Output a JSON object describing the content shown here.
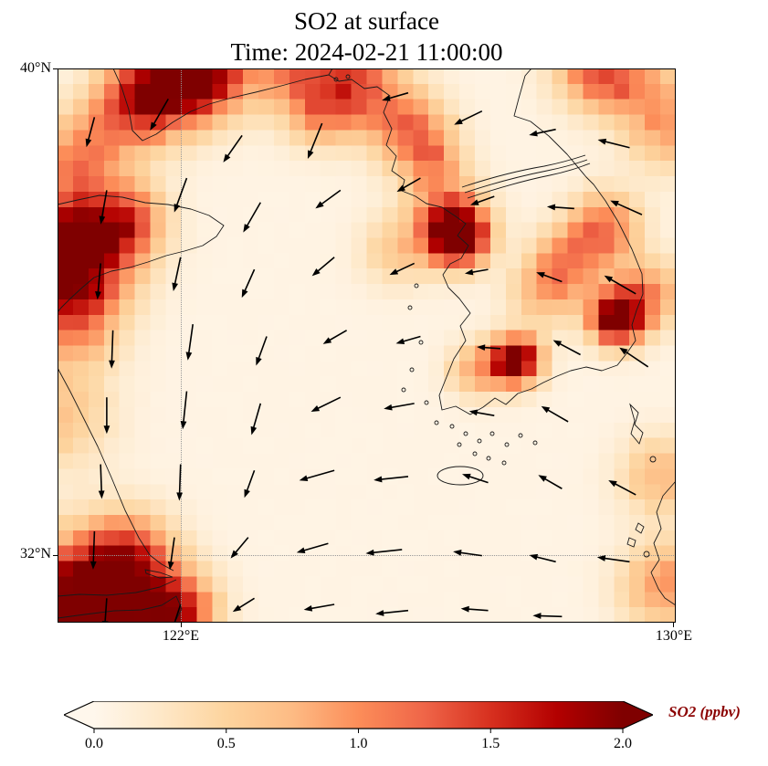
{
  "header": {
    "title": "SO2 at surface",
    "subtitle": "Time: 2024-02-21 11:00:00"
  },
  "axes": {
    "lat_top": "40°N",
    "lat_mid": "32°N",
    "lon_left": "122°E",
    "lon_right": "130°E"
  },
  "colorbar": {
    "label": "SO2 (ppbv)",
    "label_color": "#8b0000",
    "ticks": [
      "0.0",
      "0.5",
      "1.0",
      "1.5",
      "2.0"
    ],
    "extend": "both"
  },
  "chart_data": {
    "type": "heatmap",
    "title": "SO2 at surface",
    "time": "2024-02-21 11:00:00",
    "variable": "SO2",
    "units": "ppbv",
    "lon_range": [
      120.0,
      130.05
    ],
    "lat_range": [
      30.9,
      40.0
    ],
    "value_range": [
      0,
      2.0
    ],
    "colormap": "OrRd",
    "colormap_stops": [
      "#fff7ec",
      "#fee8c8",
      "#fdd49e",
      "#fdbb84",
      "#fc8d59",
      "#ef6548",
      "#d7301f",
      "#b30000",
      "#7f0000"
    ],
    "background_value": 0.06,
    "grid": {
      "nx": 40,
      "ny": 36
    },
    "gridlines": {
      "lon": 122.0,
      "lat": 32.0
    },
    "hotspots": [
      {
        "lon": 122.2,
        "lat": 40.0,
        "peak": 2.6,
        "sigma": 0.55
      },
      {
        "lon": 121.3,
        "lat": 39.4,
        "peak": 1.4,
        "sigma": 0.5
      },
      {
        "lon": 120.4,
        "lat": 38.6,
        "peak": 0.9,
        "sigma": 0.5
      },
      {
        "lon": 120.2,
        "lat": 37.0,
        "peak": 2.6,
        "sigma": 0.65
      },
      {
        "lon": 121.2,
        "lat": 37.5,
        "peak": 1.0,
        "sigma": 0.4
      },
      {
        "lon": 120.3,
        "lat": 35.8,
        "peak": 0.8,
        "sigma": 0.5
      },
      {
        "lon": 120.5,
        "lat": 31.2,
        "peak": 2.6,
        "sigma": 0.7
      },
      {
        "lon": 121.9,
        "lat": 31.1,
        "peak": 1.6,
        "sigma": 0.45
      },
      {
        "lon": 121.2,
        "lat": 32.0,
        "peak": 1.0,
        "sigma": 0.5
      },
      {
        "lon": 124.9,
        "lat": 39.8,
        "peak": 1.1,
        "sigma": 0.5
      },
      {
        "lon": 125.7,
        "lat": 39.0,
        "peak": 1.0,
        "sigma": 0.45
      },
      {
        "lon": 126.1,
        "lat": 38.5,
        "peak": 0.7,
        "sigma": 0.35
      },
      {
        "lon": 123.8,
        "lat": 40.0,
        "peak": 0.9,
        "sigma": 0.5
      },
      {
        "lon": 124.3,
        "lat": 39.3,
        "peak": 0.8,
        "sigma": 0.4
      },
      {
        "lon": 126.5,
        "lat": 37.25,
        "peak": 2.4,
        "sigma": 0.33
      },
      {
        "lon": 126.3,
        "lat": 37.6,
        "peak": 0.9,
        "sigma": 0.45
      },
      {
        "lon": 125.5,
        "lat": 37.0,
        "peak": 0.5,
        "sigma": 0.4
      },
      {
        "lon": 128.9,
        "lat": 37.4,
        "peak": 1.1,
        "sigma": 0.4
      },
      {
        "lon": 128.3,
        "lat": 36.8,
        "peak": 0.9,
        "sigma": 0.4
      },
      {
        "lon": 127.9,
        "lat": 36.3,
        "peak": 0.6,
        "sigma": 0.4
      },
      {
        "lon": 129.1,
        "lat": 35.9,
        "peak": 2.3,
        "sigma": 0.3
      },
      {
        "lon": 129.6,
        "lat": 36.3,
        "peak": 0.9,
        "sigma": 0.4
      },
      {
        "lon": 127.45,
        "lat": 35.2,
        "peak": 2.3,
        "sigma": 0.28
      },
      {
        "lon": 126.8,
        "lat": 35.05,
        "peak": 0.8,
        "sigma": 0.3
      },
      {
        "lon": 129.8,
        "lat": 33.3,
        "peak": 0.7,
        "sigma": 0.45
      },
      {
        "lon": 129.9,
        "lat": 31.5,
        "peak": 0.9,
        "sigma": 0.5
      },
      {
        "lon": 120.0,
        "lat": 34.3,
        "peak": 0.6,
        "sigma": 0.6
      },
      {
        "lon": 129.6,
        "lat": 39.6,
        "peak": 0.6,
        "sigma": 0.5
      },
      {
        "lon": 128.6,
        "lat": 40.0,
        "peak": 0.7,
        "sigma": 0.45
      },
      {
        "lon": 129.0,
        "lat": 39.9,
        "peak": 0.7,
        "sigma": 0.4
      },
      {
        "lon": 129.9,
        "lat": 38.9,
        "peak": 0.6,
        "sigma": 0.45
      }
    ],
    "wind": {
      "style": "quiver",
      "arrows": [
        [
          120.6,
          39.2,
          255,
          34
        ],
        [
          121.8,
          39.5,
          240,
          40
        ],
        [
          123.0,
          38.9,
          235,
          36
        ],
        [
          124.3,
          39.1,
          248,
          42
        ],
        [
          125.7,
          39.6,
          196,
          30
        ],
        [
          126.9,
          39.3,
          206,
          34
        ],
        [
          128.1,
          39.0,
          192,
          30
        ],
        [
          129.3,
          38.7,
          166,
          36
        ],
        [
          120.8,
          38.0,
          260,
          38
        ],
        [
          122.1,
          38.2,
          250,
          40
        ],
        [
          123.3,
          37.8,
          240,
          38
        ],
        [
          124.6,
          38.0,
          216,
          34
        ],
        [
          125.9,
          38.2,
          210,
          30
        ],
        [
          127.1,
          37.9,
          200,
          28
        ],
        [
          128.4,
          37.7,
          176,
          30
        ],
        [
          129.5,
          37.6,
          156,
          38
        ],
        [
          120.7,
          36.8,
          265,
          40
        ],
        [
          122.0,
          36.9,
          258,
          38
        ],
        [
          123.2,
          36.7,
          246,
          34
        ],
        [
          124.5,
          36.9,
          220,
          32
        ],
        [
          125.8,
          36.8,
          205,
          30
        ],
        [
          127.0,
          36.7,
          190,
          26
        ],
        [
          128.2,
          36.5,
          160,
          30
        ],
        [
          129.4,
          36.3,
          150,
          40
        ],
        [
          120.9,
          35.7,
          268,
          42
        ],
        [
          122.2,
          35.8,
          262,
          40
        ],
        [
          123.4,
          35.6,
          250,
          34
        ],
        [
          124.7,
          35.7,
          210,
          30
        ],
        [
          125.9,
          35.6,
          196,
          28
        ],
        [
          127.2,
          35.4,
          176,
          26
        ],
        [
          128.5,
          35.3,
          152,
          34
        ],
        [
          129.6,
          35.1,
          146,
          38
        ],
        [
          120.8,
          34.6,
          270,
          40
        ],
        [
          122.1,
          34.7,
          264,
          42
        ],
        [
          123.3,
          34.5,
          254,
          36
        ],
        [
          124.6,
          34.6,
          206,
          36
        ],
        [
          125.8,
          34.5,
          190,
          34
        ],
        [
          127.1,
          34.3,
          170,
          28
        ],
        [
          128.3,
          34.2,
          150,
          34
        ],
        [
          120.7,
          33.5,
          272,
          38
        ],
        [
          122.0,
          33.5,
          268,
          40
        ],
        [
          123.2,
          33.4,
          250,
          32
        ],
        [
          124.5,
          33.4,
          196,
          40
        ],
        [
          125.7,
          33.3,
          186,
          38
        ],
        [
          127.0,
          33.2,
          162,
          30
        ],
        [
          128.2,
          33.1,
          150,
          30
        ],
        [
          129.4,
          33.0,
          152,
          34
        ],
        [
          120.6,
          32.4,
          268,
          42
        ],
        [
          121.9,
          32.3,
          262,
          36
        ],
        [
          123.1,
          32.3,
          230,
          30
        ],
        [
          124.4,
          32.2,
          196,
          36
        ],
        [
          125.6,
          32.1,
          186,
          40
        ],
        [
          126.9,
          32.0,
          172,
          32
        ],
        [
          128.1,
          31.9,
          166,
          30
        ],
        [
          129.3,
          31.9,
          172,
          36
        ],
        [
          120.8,
          31.3,
          266,
          34
        ],
        [
          122.0,
          31.2,
          252,
          30
        ],
        [
          123.2,
          31.3,
          212,
          28
        ],
        [
          124.5,
          31.2,
          190,
          34
        ],
        [
          125.7,
          31.1,
          186,
          36
        ],
        [
          127.0,
          31.1,
          176,
          30
        ],
        [
          128.2,
          31.0,
          178,
          32
        ]
      ]
    }
  }
}
